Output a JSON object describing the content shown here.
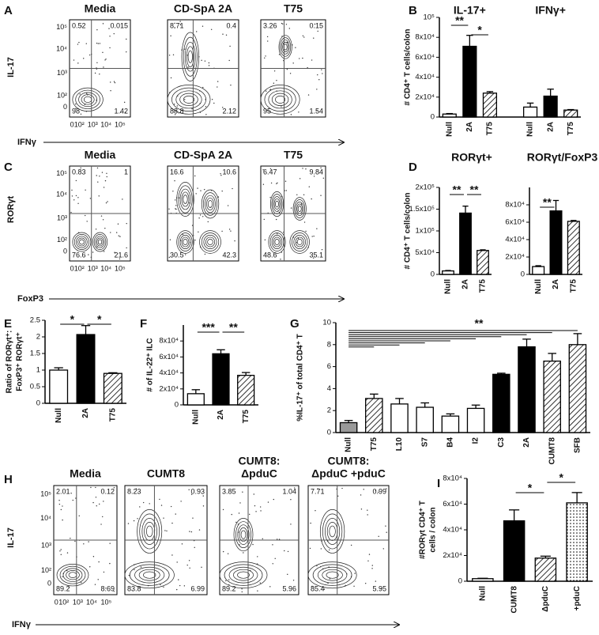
{
  "flow_panels": [
    {
      "label": "A",
      "y_label": "IL-17",
      "x_label": "IFNγ",
      "y_ticks": [
        "10⁵",
        "10⁴",
        "10³",
        "10²",
        "0"
      ],
      "x_ticks": [
        "0",
        "10²",
        "10³",
        "10⁴",
        "10⁵"
      ],
      "plots": [
        {
          "title": [
            "Media"
          ],
          "quadrants": [
            "0.52",
            "0.015",
            "98",
            "1.42"
          ]
        },
        {
          "title": [
            "CD-SpA 2A"
          ],
          "quadrants": [
            "8.71",
            "0.4",
            "88.8",
            "2.12"
          ]
        },
        {
          "title": [
            "T75"
          ],
          "quadrants": [
            "3.26",
            "0.15",
            "95",
            "1.54"
          ]
        }
      ]
    },
    {
      "label": "C",
      "y_label": "RORγt",
      "x_label": "FoxP3",
      "y_ticks": [
        "10⁵",
        "10⁴",
        "10³",
        "10²",
        "0"
      ],
      "x_ticks": [
        "0",
        "10²",
        "10³",
        "10⁴",
        "10⁵"
      ],
      "plots": [
        {
          "title": [
            "Media"
          ],
          "quadrants": [
            "0.83",
            "1",
            "76.6",
            "21.6"
          ]
        },
        {
          "title": [
            "CD-SpA 2A"
          ],
          "quadrants": [
            "16.6",
            "10.6",
            "30.5",
            "42.3"
          ]
        },
        {
          "title": [
            "T75"
          ],
          "quadrants": [
            "6.47",
            "9.84",
            "48.6",
            "35.1"
          ]
        }
      ]
    },
    {
      "label": "H",
      "y_label": "IL-17",
      "x_label": "IFNγ",
      "y_ticks": [
        "10⁵",
        "10⁴",
        "10³",
        "10²",
        "0"
      ],
      "x_ticks": [
        "0",
        "10²",
        "10³",
        "10⁴",
        "10⁵"
      ],
      "plots": [
        {
          "title": [
            "Media"
          ],
          "quadrants": [
            "2.01",
            "0.12",
            "89.2",
            "8.69"
          ]
        },
        {
          "title": [
            "CUMT8"
          ],
          "quadrants": [
            "8.23",
            "0.93",
            "83.8",
            "6.99"
          ]
        },
        {
          "title": [
            "CUMT8:",
            "ΔpduC"
          ],
          "quadrants": [
            "3.85",
            "1.04",
            "89.2",
            "5.96"
          ]
        },
        {
          "title": [
            "CUMT8:",
            "ΔpduC +pduC"
          ],
          "quadrants": [
            "7.71",
            "0.99",
            "85.4",
            "5.95"
          ]
        }
      ]
    }
  ],
  "chart_data": [
    {
      "type": "bar",
      "label": "B",
      "group_titles": [
        "IL-17+",
        "IFNγ+"
      ],
      "y_label": [
        "# CD4⁺ T cells/colon"
      ],
      "categories": [
        "Null",
        "2A",
        "T75",
        "Null",
        "2A",
        "T75"
      ],
      "values": [
        3000,
        71000,
        24000,
        10000,
        21000,
        7000
      ],
      "errors": [
        500,
        11000,
        1500,
        4000,
        7000,
        500
      ],
      "fills": [
        "white",
        "black",
        "hatch",
        "white",
        "black",
        "hatch"
      ],
      "ylim": [
        0,
        100000
      ],
      "yticks": [
        0,
        {
          "value": 20000,
          "label": "2x10⁴"
        },
        {
          "value": 40000,
          "label": "4x10⁴"
        },
        {
          "value": 60000,
          "label": "6x10⁴"
        },
        {
          "value": 80000,
          "label": "8x10⁴"
        },
        {
          "value": 100000,
          "label": "10⁵"
        }
      ],
      "significance": [
        "**",
        "*"
      ]
    },
    {
      "type": "bar",
      "label": "D",
      "title": "RORγt+",
      "y_label": [
        "# CD4⁺ T cells/colon"
      ],
      "categories": [
        "Null",
        "2A",
        "T75"
      ],
      "values": [
        8000,
        141000,
        55000
      ],
      "errors": [
        1000,
        16000,
        1500
      ],
      "fills": [
        "white",
        "black",
        "hatch"
      ],
      "ylim": [
        0,
        200000
      ],
      "yticks": [
        0,
        {
          "value": 50000,
          "label": "5x10⁴"
        },
        {
          "value": 100000,
          "label": "1x10⁵"
        },
        {
          "value": 150000,
          "label": "1.5x10⁵"
        },
        {
          "value": 200000,
          "label": "2x10⁵"
        }
      ],
      "significance": [
        "**",
        "**"
      ]
    },
    {
      "type": "bar",
      "title": "RORγt/FoxP3",
      "categories": [
        "Null",
        "2A",
        "T75"
      ],
      "values": [
        9000,
        73000,
        61000
      ],
      "errors": [
        1000,
        12000,
        1000
      ],
      "fills": [
        "white",
        "black",
        "hatch"
      ],
      "ylim": [
        0,
        100000
      ],
      "yticks": [
        0,
        {
          "value": 20000,
          "label": "2x10⁴"
        },
        {
          "value": 40000,
          "label": "4x10⁴"
        },
        {
          "value": 60000,
          "label": "6x10⁴"
        },
        {
          "value": 80000,
          "label": "8x10⁴"
        }
      ],
      "significance": [
        "**"
      ]
    },
    {
      "type": "bar",
      "label": "E",
      "y_label": [
        "Ratio of RORγt⁺:",
        "FoxP3⁺ RORγt⁺"
      ],
      "categories": [
        "Null",
        "2A",
        "T75"
      ],
      "values": [
        1.0,
        2.07,
        0.9
      ],
      "errors": [
        0.07,
        0.27,
        0.02
      ],
      "fills": [
        "white",
        "black",
        "hatch"
      ],
      "ylim": [
        0,
        2.5
      ],
      "yticks": [
        0,
        0.5,
        1,
        1.5,
        2,
        2.5
      ],
      "significance": [
        "*",
        "*"
      ]
    },
    {
      "type": "bar",
      "label": "F",
      "y_label": [
        "# of IL-22⁺ ILC"
      ],
      "categories": [
        "Null",
        "2A",
        "T75"
      ],
      "values": [
        14000,
        64000,
        37000
      ],
      "errors": [
        5000,
        5000,
        3500
      ],
      "fills": [
        "white",
        "black",
        "hatch"
      ],
      "ylim": [
        0,
        100000
      ],
      "yticks": [
        0,
        {
          "value": 20000,
          "label": "2x10⁴"
        },
        {
          "value": 40000,
          "label": "4x10⁴"
        },
        {
          "value": 60000,
          "label": "6x10⁴"
        },
        {
          "value": 80000,
          "label": "8x10⁴"
        }
      ],
      "significance": [
        "***",
        "**"
      ]
    },
    {
      "type": "bar",
      "label": "G",
      "y_label": [
        "%IL-17⁺ of total CD4⁺ T"
      ],
      "categories": [
        "Null",
        "T75",
        "L10",
        "S7",
        "B4",
        "I2",
        "C3",
        "2A",
        "CUMT8",
        "SFB"
      ],
      "values": [
        0.9,
        3.1,
        2.6,
        2.3,
        1.5,
        2.2,
        5.3,
        7.8,
        6.5,
        8.0
      ],
      "errors": [
        0.2,
        0.4,
        0.5,
        0.4,
        0.2,
        0.3,
        0.1,
        0.7,
        0.7,
        1.0
      ],
      "fills": [
        "grey",
        "hatch",
        "white",
        "white",
        "white",
        "white",
        "black",
        "black",
        "hatch",
        "hatch"
      ],
      "ylim": [
        0,
        10
      ],
      "yticks": [
        0,
        2,
        4,
        6,
        8,
        10
      ],
      "significance": [
        "**"
      ]
    },
    {
      "type": "bar",
      "label": "I",
      "y_label": [
        "#RORγt CD4⁺ T",
        "cells / colon"
      ],
      "categories": [
        "Null",
        "CUMT8",
        "ΔpduC",
        "+pduC"
      ],
      "values": [
        2000,
        47000,
        18000,
        61000
      ],
      "errors": [
        300,
        8500,
        1500,
        8000
      ],
      "fills": [
        "white",
        "black",
        "hatch",
        "dots"
      ],
      "ylim": [
        0,
        80000
      ],
      "yticks": [
        0,
        {
          "value": 20000,
          "label": "2x10⁴"
        },
        {
          "value": 40000,
          "label": "4x10⁴"
        },
        {
          "value": 60000,
          "label": "6x10⁴"
        },
        {
          "value": 80000,
          "label": "8x10⁴"
        }
      ],
      "significance": [
        "*",
        "*"
      ]
    }
  ]
}
